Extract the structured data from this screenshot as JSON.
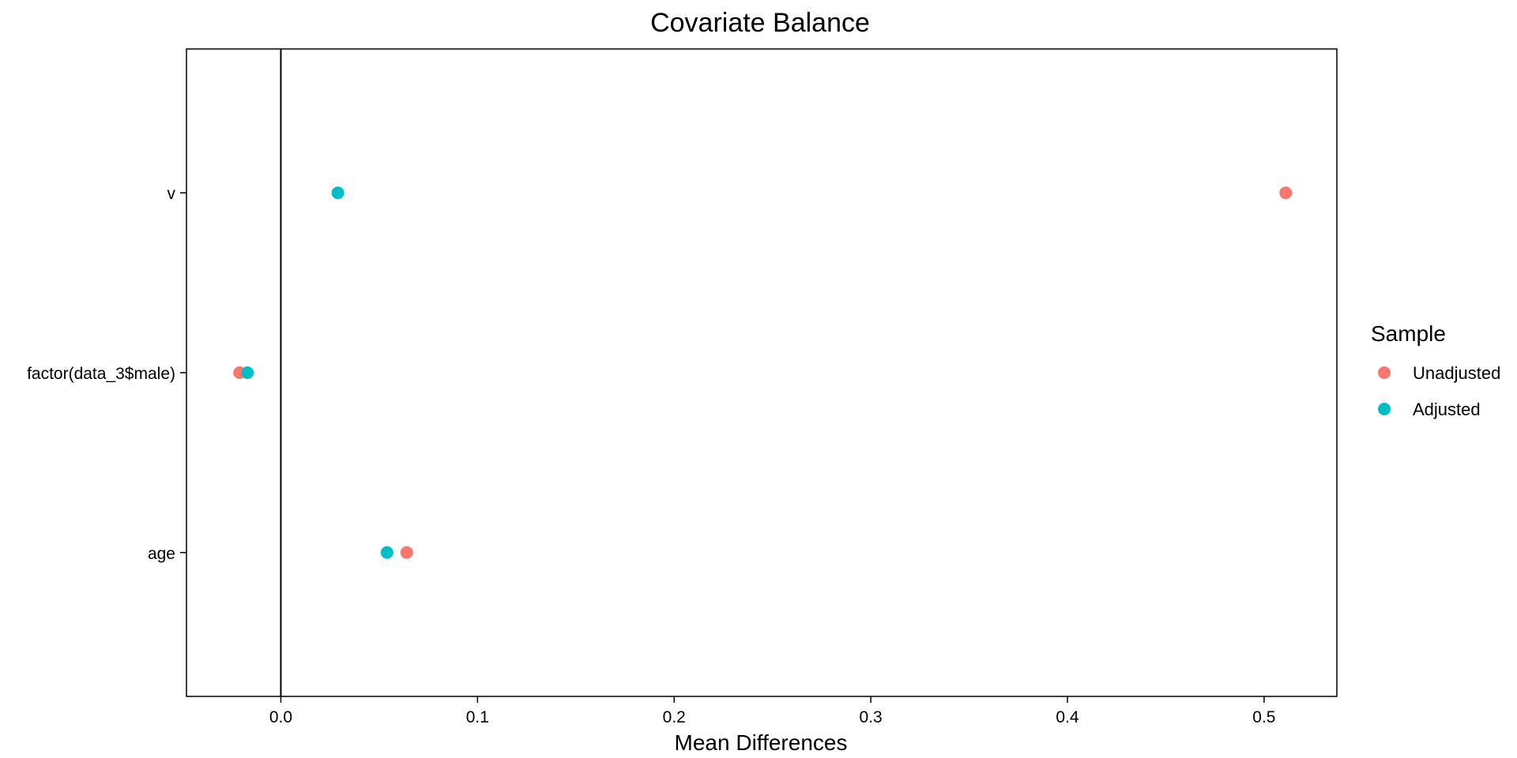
{
  "chart_data": {
    "type": "scatter",
    "title": "Covariate Balance",
    "xlabel": "Mean Differences",
    "ylabel": "",
    "xlim": [
      -0.048,
      0.537
    ],
    "xticks": [
      0.0,
      0.1,
      0.2,
      0.3,
      0.4,
      0.5
    ],
    "xtick_labels": [
      "0.0",
      "0.1",
      "0.2",
      "0.3",
      "0.4",
      "0.5"
    ],
    "reference_line_x": 0,
    "categories": [
      "v",
      "factor(data_3$male)",
      "age"
    ],
    "series": [
      {
        "name": "Unadjusted",
        "color": "#F8766D",
        "values": [
          0.511,
          -0.021,
          0.064
        ]
      },
      {
        "name": "Adjusted",
        "color": "#00BFC4",
        "values": [
          0.029,
          -0.017,
          0.054
        ]
      }
    ],
    "legend": {
      "title": "Sample",
      "position": "right"
    },
    "grid": false
  }
}
